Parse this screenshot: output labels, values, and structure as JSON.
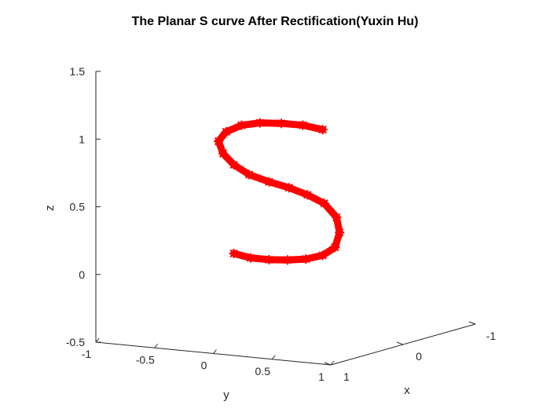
{
  "chart_data": {
    "type": "scatter",
    "title": "The Planar S curve After Rectification(Yuxin Hu)",
    "xlabel": "x",
    "ylabel": "y",
    "zlabel": "z",
    "xlim": [
      -1,
      1
    ],
    "ylim": [
      -1,
      1
    ],
    "zlim": [
      -0.5,
      1.5
    ],
    "grid": false,
    "x_ticks": [
      {
        "value": -1,
        "label": "-1"
      },
      {
        "value": 0,
        "label": "0"
      },
      {
        "value": 1,
        "label": "1"
      }
    ],
    "y_ticks": [
      {
        "value": -1,
        "label": "-1"
      },
      {
        "value": -0.5,
        "label": "-0.5"
      },
      {
        "value": 0,
        "label": "0"
      },
      {
        "value": 0.5,
        "label": "0.5"
      },
      {
        "value": 1,
        "label": "1"
      }
    ],
    "z_ticks": [
      {
        "value": -0.5,
        "label": "-0.5"
      },
      {
        "value": 0,
        "label": "0"
      },
      {
        "value": 0.5,
        "label": "0.5"
      },
      {
        "value": 1,
        "label": "1"
      },
      {
        "value": 1.5,
        "label": "1.5"
      }
    ],
    "marker": "*",
    "marker_color": "#ff0000",
    "series": [
      {
        "color": "#ff0000",
        "y": [
          0.85,
          0.72,
          0.58,
          0.44,
          0.32,
          0.22,
          0.17,
          0.2,
          0.27,
          0.37,
          0.5,
          0.63,
          0.75,
          0.86,
          0.94,
          0.96,
          0.93,
          0.85,
          0.74,
          0.62,
          0.5,
          0.38,
          0.27
        ],
        "z": [
          1.07,
          1.1,
          1.11,
          1.11,
          1.09,
          1.04,
          0.97,
          0.88,
          0.8,
          0.73,
          0.68,
          0.64,
          0.59,
          0.53,
          0.43,
          0.32,
          0.21,
          0.15,
          0.12,
          0.11,
          0.11,
          0.12,
          0.15
        ]
      }
    ]
  }
}
